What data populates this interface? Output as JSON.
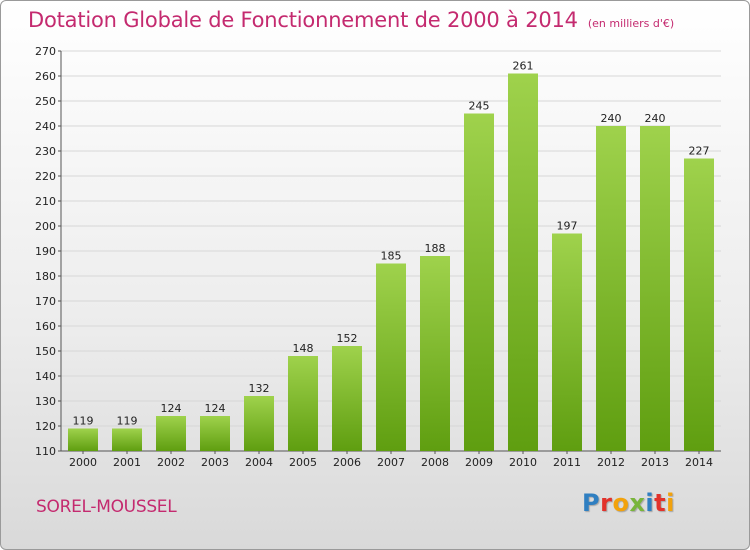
{
  "title": "Dotation Globale de Fonctionnement de 2000 à 2014",
  "subtitle": "(en milliers d'€)",
  "commune": "SOREL-MOUSSEL",
  "logo": {
    "text": "Proxiti",
    "letters": [
      {
        "char": "P",
        "color": "#2f7fc1"
      },
      {
        "char": "r",
        "color": "#e2322b"
      },
      {
        "char": "o",
        "color": "#f2a20c"
      },
      {
        "char": "x",
        "color": "#79b53b"
      },
      {
        "char": "i",
        "color": "#2f7fc1"
      },
      {
        "char": "t",
        "color": "#e2322b"
      },
      {
        "char": "i",
        "color": "#f2a20c"
      }
    ]
  },
  "colors": {
    "title": "#c42a6f",
    "bar_light": "#9fd24c",
    "bar_dark": "#5f9e10",
    "grid": "#d7d7d7"
  },
  "chart_data": {
    "type": "bar",
    "title": "Dotation Globale de Fonctionnement de 2000 à 2014",
    "subtitle": "(en milliers d'€)",
    "categories": [
      "2000",
      "2001",
      "2002",
      "2003",
      "2004",
      "2005",
      "2006",
      "2007",
      "2008",
      "2009",
      "2010",
      "2011",
      "2012",
      "2013",
      "2014"
    ],
    "values": [
      119,
      119,
      124,
      124,
      132,
      148,
      152,
      185,
      188,
      245,
      261,
      197,
      240,
      240,
      227
    ],
    "ylim": [
      110,
      270
    ],
    "yticks": [
      110,
      120,
      130,
      140,
      150,
      160,
      170,
      180,
      190,
      200,
      210,
      220,
      230,
      240,
      250,
      260,
      270
    ],
    "grid": true,
    "xlabel": "",
    "ylabel": ""
  }
}
